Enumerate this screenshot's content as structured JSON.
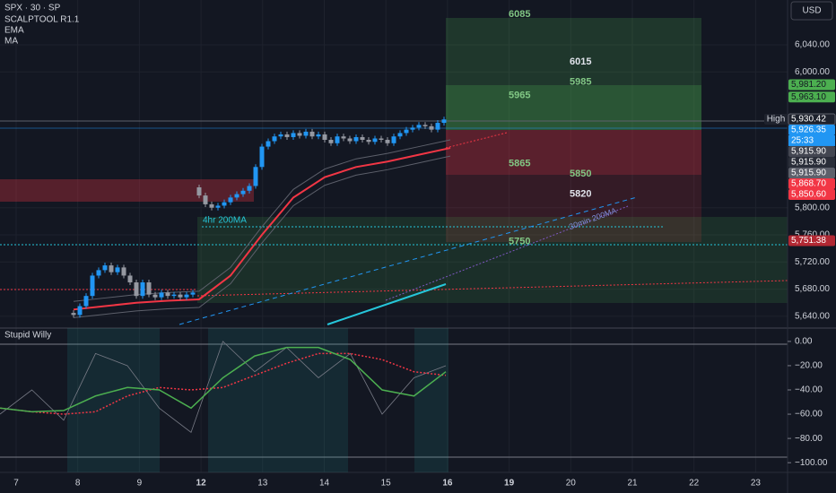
{
  "currency": "USD",
  "chart_data": [
    {
      "type": "candlestick",
      "title": "SPX · 30 · SP",
      "indicators": [
        "SCALPTOOL R1.1",
        "EMA",
        "MA"
      ],
      "categories": [
        "7",
        "8",
        "9",
        "12",
        "13",
        "14",
        "15",
        "16",
        "19",
        "20",
        "21",
        "22",
        "23"
      ],
      "open": [
        5645,
        5642,
        5655,
        5670,
        5700,
        5708,
        5715,
        5705,
        5712,
        5700,
        5690,
        5670,
        5690,
        5672,
        5668,
        5675,
        5670,
        5672,
        5668,
        5672,
        5830,
        5818,
        5805,
        5800,
        5803,
        5808,
        5815,
        5820,
        5825,
        5832,
        5860,
        5890,
        5898,
        5905,
        5908,
        5904,
        5910,
        5906,
        5912,
        5905,
        5908,
        5900,
        5895,
        5905,
        5902,
        5898,
        5904,
        5900,
        5897,
        5902,
        5900,
        5895,
        5905,
        5910,
        5915,
        5918,
        5922,
        5920,
        5915,
        5925
      ],
      "high": [
        5649,
        5659,
        5674,
        5704,
        5712,
        5719,
        5719,
        5716,
        5716,
        5704,
        5694,
        5694,
        5694,
        5676,
        5679,
        5679,
        5676,
        5676,
        5676,
        5679,
        5834,
        5822,
        5809,
        5807,
        5812,
        5819,
        5824,
        5829,
        5836,
        5864,
        5894,
        5902,
        5909,
        5912,
        5912,
        5914,
        5914,
        5916,
        5916,
        5912,
        5912,
        5904,
        5909,
        5909,
        5906,
        5908,
        5908,
        5904,
        5906,
        5906,
        5904,
        5909,
        5914,
        5919,
        5922,
        5926,
        5926,
        5924,
        5929,
        5934
      ],
      "low": [
        5638,
        5638,
        5651,
        5666,
        5696,
        5704,
        5701,
        5701,
        5696,
        5686,
        5666,
        5666,
        5668,
        5664,
        5664,
        5666,
        5666,
        5664,
        5664,
        5668,
        5814,
        5801,
        5796,
        5796,
        5799,
        5804,
        5811,
        5816,
        5821,
        5828,
        5856,
        5886,
        5894,
        5901,
        5900,
        5900,
        5902,
        5902,
        5901,
        5901,
        5896,
        5891,
        5891,
        5898,
        5894,
        5894,
        5896,
        5893,
        5893,
        5896,
        5891,
        5891,
        5901,
        5906,
        5911,
        5914,
        5916,
        5911,
        5911,
        5921
      ],
      "close": [
        5642,
        5655,
        5670,
        5700,
        5708,
        5715,
        5705,
        5712,
        5700,
        5690,
        5670,
        5690,
        5672,
        5668,
        5675,
        5670,
        5672,
        5668,
        5672,
        5675,
        5818,
        5805,
        5800,
        5803,
        5808,
        5815,
        5820,
        5825,
        5832,
        5860,
        5890,
        5898,
        5905,
        5908,
        5904,
        5910,
        5906,
        5912,
        5905,
        5908,
        5900,
        5895,
        5905,
        5902,
        5898,
        5904,
        5900,
        5897,
        5902,
        5900,
        5895,
        5905,
        5910,
        5915,
        5918,
        5922,
        5920,
        5915,
        5925,
        5930
      ],
      "up_color": "#2196f3",
      "down_color": "#9598a1",
      "series": [
        {
          "color": "#5d606b",
          "values": [
            5662,
            5667,
            5672,
            5675,
            5677,
            5712,
            5772,
            5827,
            5857,
            5872,
            5880,
            5890,
            5900
          ]
        },
        {
          "color": "#5d606b",
          "values": [
            5638,
            5643,
            5648,
            5651,
            5653,
            5688,
            5748,
            5803,
            5833,
            5848,
            5856,
            5866,
            5876
          ]
        },
        {
          "color": "#f23645",
          "values": [
            5650,
            5655,
            5660,
            5663,
            5665,
            5700,
            5760,
            5815,
            5845,
            5860,
            5868,
            5878,
            5888
          ]
        }
      ],
      "ylim": [
        5624,
        6106
      ],
      "yticks": [
        {
          "value": 6040,
          "label": "6,040.00"
        },
        {
          "value": 6000,
          "label": "6,000.00"
        },
        {
          "value": 5800,
          "label": "5,800.00"
        },
        {
          "value": 5760,
          "label": "5,760.00"
        },
        {
          "value": 5720,
          "label": "5,720.00"
        },
        {
          "value": 5680,
          "label": "5,680.00"
        },
        {
          "value": 5640,
          "label": "5,640.00"
        }
      ],
      "levels": [
        6085,
        6015,
        5985,
        5965,
        5865,
        5850,
        5820,
        5750
      ],
      "level_colors": [
        "#81c784",
        "#e0e3eb",
        "#81c784",
        "#81c784",
        "#81c784",
        "#81c784",
        "#e0e3eb",
        "#81c784"
      ],
      "price_labels": [
        {
          "value": 5981.2,
          "label": "5,981.20",
          "color": "#4caf50"
        },
        {
          "value": 5963.1,
          "label": "5,963.10",
          "color": "#4caf50"
        },
        {
          "value": 5930.42,
          "label": "5,930.42",
          "color": "#1e222d"
        },
        {
          "value": 5926.35,
          "label": "5,926.35",
          "color": "#2196f3"
        },
        {
          "value": 5915.9,
          "label": "5,915.90",
          "color": "#434651"
        },
        {
          "value": 5915.9,
          "label": "5,915.90",
          "color": "#2a2e39"
        },
        {
          "value": 5915.9,
          "label": "5,915.90",
          "color": "#5d606b"
        },
        {
          "value": 5868.7,
          "label": "5,868.70",
          "color": "#f23645"
        },
        {
          "value": 5850.6,
          "label": "5,850.60",
          "color": "#f23645"
        },
        {
          "value": 5751.38,
          "label": "5,751.38",
          "color": "#b22833"
        }
      ],
      "high_label": "High",
      "countdown": "25:33",
      "annotations": [
        "4hr 200MA",
        "30min 200MA"
      ]
    },
    {
      "type": "line",
      "title": "Stupid Willy",
      "series": [
        {
          "color": "#787b86",
          "values": [
            -60,
            -40,
            -65,
            -10,
            -20,
            -55,
            -75,
            0,
            -25,
            -5,
            -30,
            -10,
            -60,
            -30,
            -20
          ]
        },
        {
          "color": "#f23645",
          "values": [
            -55,
            -58,
            -60,
            -58,
            -45,
            -38,
            -40,
            -38,
            -28,
            -18,
            -10,
            -10,
            -15,
            -25,
            -28
          ]
        },
        {
          "color": "#4caf50",
          "values": [
            -55,
            -58,
            -57,
            -45,
            -38,
            -40,
            -55,
            -30,
            -12,
            -5,
            -5,
            -15,
            -40,
            -45,
            -25
          ]
        }
      ],
      "ylim": [
        -108,
        11
      ],
      "yticks": [
        {
          "value": 0,
          "label": "0.00"
        },
        {
          "value": -20,
          "label": "−20.00"
        },
        {
          "value": -40,
          "label": "−40.00"
        },
        {
          "value": -60,
          "label": "−60.00"
        },
        {
          "value": -80,
          "label": "−80.00"
        },
        {
          "value": -100,
          "label": "−100.00"
        }
      ]
    }
  ]
}
